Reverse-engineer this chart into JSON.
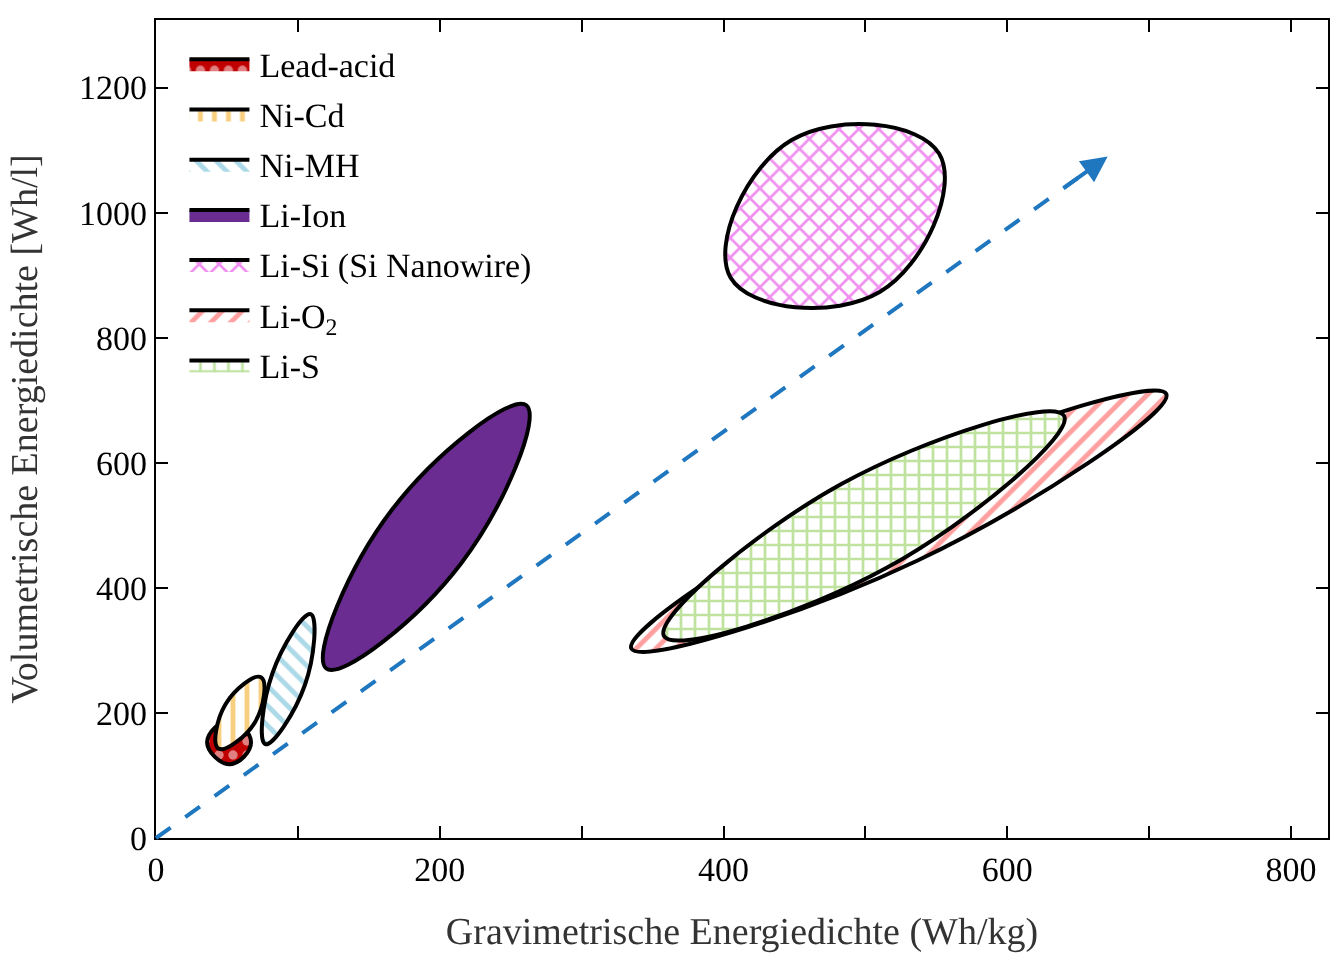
{
  "chart_data": {
    "type": "area",
    "xlabel": "Gravimetrische Energiedichte (Wh/kg)",
    "ylabel": "Volumetrische Energiedichte [Wh/l]",
    "xlim": [
      0,
      826
    ],
    "ylim": [
      0,
      1308
    ],
    "xticks": [
      0,
      {
        "value": 100,
        "label": null
      },
      200,
      {
        "value": 300,
        "label": null
      },
      400,
      {
        "value": 500,
        "label": null
      },
      600,
      {
        "value": 700,
        "label": null
      },
      800
    ],
    "yticks": [
      0,
      200,
      400,
      600,
      800,
      1000,
      1200
    ],
    "grid": false,
    "legend": "top left",
    "series": [
      {
        "name": "Lead-acid",
        "color": "#c00000",
        "x": [
          36,
          52,
          67,
          52
        ],
        "values": [
          153,
          188,
          153,
          118
        ]
      },
      {
        "name": "Ni-Cd",
        "color": "#f0a000",
        "x": [
          44,
          49,
          74,
          70
        ],
        "values": [
          143,
          214,
          257,
          186
        ]
      },
      {
        "name": "Ni-MH",
        "color": "#5ab4d0",
        "x": [
          77,
          82,
          109,
          105
        ],
        "values": [
          150,
          263,
          358,
          245
        ]
      },
      {
        "name": "Li-Ion",
        "color": "#6a2c91",
        "x": [
          120,
          166,
          261,
          215
        ],
        "values": [
          271,
          524,
          692,
          439
        ]
      },
      {
        "name": "Li-Si (Si Nanowire)",
        "color": "#e020e0",
        "x": [
          405,
          448,
          552,
          510
        ],
        "values": [
          896,
          1116,
          1094,
          873
        ]
      },
      {
        "name": "Li-O$_{2}$",
        "color": "#ff4040",
        "x": [
          335,
          511,
          712,
          536
        ],
        "values": [
          303,
          569,
          710,
          443
        ]
      },
      {
        "name": "Li-S",
        "color": "#80c840",
        "x": [
          358,
          483,
          640,
          515
        ],
        "values": [
          323,
          566,
          675,
          432
        ]
      }
    ]
  }
}
